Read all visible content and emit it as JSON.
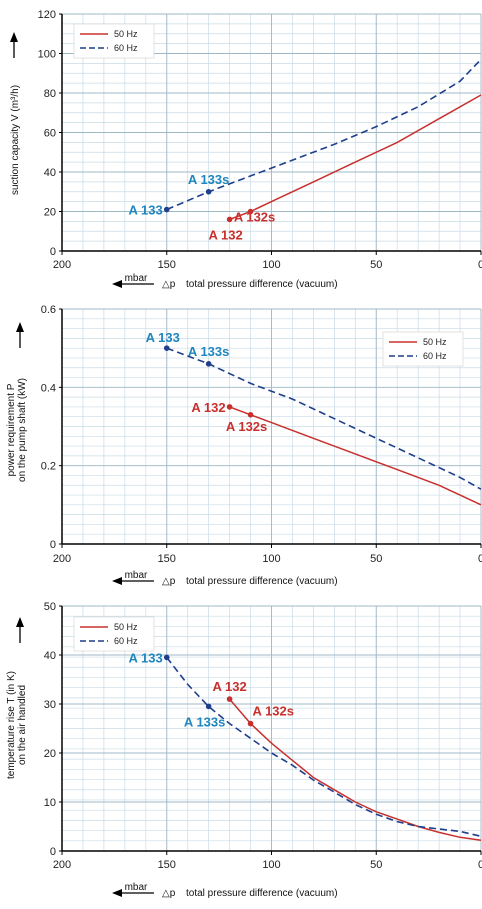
{
  "colors": {
    "series_50": "#c8302e",
    "series_60": "#1f3f8c",
    "label_60": "#1e86bf",
    "label_50": "#c8302e",
    "grid": "#c9dbe6"
  },
  "chart_data": [
    {
      "type": "line",
      "ylabel": "suction capacity V (m³/h)",
      "xlabel": "total pressure difference (vacuum)",
      "xunit": "mbar",
      "xsymbol": "△p",
      "xlim": [
        200,
        0
      ],
      "ylim": [
        0,
        120
      ],
      "xticks": [
        200,
        150,
        100,
        50,
        0
      ],
      "yticks": [
        0,
        20,
        40,
        60,
        80,
        100,
        120
      ],
      "grid": true,
      "legend_position": "top-left",
      "series": [
        {
          "name": "50 Hz",
          "key": "s50",
          "x": [
            120,
            110,
            100,
            80,
            60,
            40,
            20,
            0
          ],
          "y": [
            16,
            20,
            25,
            35,
            45,
            55,
            67,
            79
          ]
        },
        {
          "name": "60 Hz",
          "key": "s60",
          "x": [
            150,
            130,
            110,
            90,
            70,
            50,
            30,
            10,
            0
          ],
          "y": [
            21,
            30,
            38,
            46,
            54,
            63,
            73,
            86,
            97
          ]
        }
      ],
      "points": [
        {
          "label": "A 133",
          "series": "s60",
          "x": 150,
          "y": 21,
          "anchor": "left"
        },
        {
          "label": "A 133s",
          "series": "s60",
          "x": 130,
          "y": 30,
          "anchor": "above"
        },
        {
          "label": "A 132",
          "series": "s50",
          "x": 120,
          "y": 16,
          "anchor": "below-left"
        },
        {
          "label": "A 132s",
          "series": "s50",
          "x": 110,
          "y": 20,
          "anchor": "below-right"
        }
      ]
    },
    {
      "type": "line",
      "ylabel": "power requirement P on the pump shaft (kW)",
      "xlabel": "total pressure difference (vacuum)",
      "xunit": "mbar",
      "xsymbol": "△p",
      "xlim": [
        200,
        0
      ],
      "ylim": [
        0,
        0.6
      ],
      "xticks": [
        200,
        150,
        100,
        50,
        0
      ],
      "yticks": [
        0,
        0.2,
        0.4,
        0.6
      ],
      "yticklabels": [
        "0",
        "0.2",
        "0.4",
        "0.6"
      ],
      "grid": true,
      "legend_position": "top-right",
      "series": [
        {
          "name": "50 Hz",
          "key": "s50",
          "x": [
            120,
            110,
            100,
            80,
            60,
            40,
            20,
            0
          ],
          "y": [
            0.35,
            0.33,
            0.31,
            0.27,
            0.23,
            0.19,
            0.15,
            0.1
          ]
        },
        {
          "name": "60 Hz",
          "key": "s60",
          "x": [
            150,
            130,
            110,
            90,
            70,
            50,
            30,
            10,
            0
          ],
          "y": [
            0.5,
            0.46,
            0.41,
            0.37,
            0.32,
            0.27,
            0.22,
            0.17,
            0.14
          ]
        }
      ],
      "points": [
        {
          "label": "A 133",
          "series": "s60",
          "x": 150,
          "y": 0.5,
          "anchor": "above-left"
        },
        {
          "label": "A 133s",
          "series": "s60",
          "x": 130,
          "y": 0.46,
          "anchor": "above"
        },
        {
          "label": "A 132",
          "series": "s50",
          "x": 120,
          "y": 0.35,
          "anchor": "left"
        },
        {
          "label": "A 132s",
          "series": "s50",
          "x": 110,
          "y": 0.33,
          "anchor": "below"
        }
      ]
    },
    {
      "type": "line",
      "ylabel": "temperature rise T (in K) on the air handled",
      "xlabel": "total pressure difference (vacuum)",
      "xunit": "mbar",
      "xsymbol": "△p",
      "xlim": [
        200,
        0
      ],
      "ylim": [
        0,
        50
      ],
      "xticks": [
        200,
        150,
        100,
        50,
        0
      ],
      "yticks": [
        0,
        10,
        20,
        30,
        40,
        50
      ],
      "grid": true,
      "legend_position": "top-left",
      "series": [
        {
          "name": "50 Hz",
          "key": "s50",
          "x": [
            120,
            110,
            100,
            90,
            80,
            70,
            60,
            50,
            40,
            30,
            20,
            10,
            0
          ],
          "y": [
            31,
            26,
            22,
            18.5,
            15,
            12.5,
            10,
            8,
            6.5,
            5,
            3.8,
            2.8,
            2.2
          ]
        },
        {
          "name": "60 Hz",
          "key": "s60",
          "x": [
            150,
            140,
            130,
            120,
            110,
            100,
            90,
            80,
            70,
            60,
            50,
            40,
            30,
            20,
            10,
            0
          ],
          "y": [
            39.5,
            34,
            29.5,
            26,
            23,
            20,
            17.5,
            14.5,
            12,
            9.5,
            7.5,
            6,
            5,
            4.5,
            4,
            3
          ]
        }
      ],
      "points": [
        {
          "label": "A 133",
          "series": "s60",
          "x": 150,
          "y": 39.5,
          "anchor": "left"
        },
        {
          "label": "A 133s",
          "series": "s60",
          "x": 130,
          "y": 29.5,
          "anchor": "below-left"
        },
        {
          "label": "A 132",
          "series": "s50",
          "x": 120,
          "y": 31,
          "anchor": "above"
        },
        {
          "label": "A 132s",
          "series": "s50",
          "x": 110,
          "y": 26,
          "anchor": "above-right"
        }
      ]
    }
  ]
}
